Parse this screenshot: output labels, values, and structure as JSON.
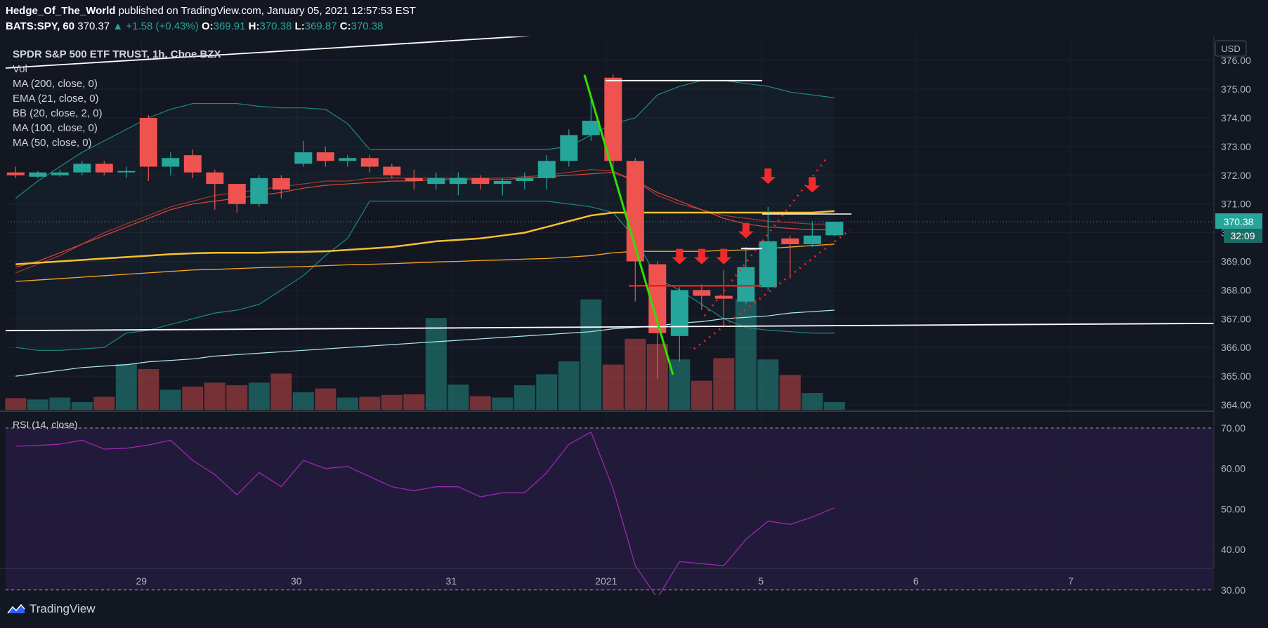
{
  "header": {
    "author": "Hedge_Of_The_World",
    "published": "published on TradingView.com, January 05, 2021 12:57:53 EST",
    "symbol": "BATS:SPY, 60",
    "last": "370.37",
    "change": "+1.58 (+0.43%)",
    "o_label": "O:",
    "o_value": "369.91",
    "h_label": "H:",
    "h_value": "370.38",
    "l_label": "L:",
    "l_value": "369.87",
    "c_label": "C:",
    "c_value": "370.38"
  },
  "legend": {
    "title": "SPDR S&P 500 ETF TRUST, 1h, Cboe BZX",
    "items": [
      "Vol",
      "MA (200, close, 0)",
      "EMA (21, close, 0)",
      "BB (20, close, 2, 0)",
      "MA (100, close, 0)",
      "MA (50, close, 0)"
    ]
  },
  "currency": "USD",
  "price_tag": "370.38",
  "countdown": "32:09",
  "rsi_label": "RSI (14, close)",
  "brand": "TradingView",
  "colors": {
    "up": "#26a69a",
    "down": "#ef5350",
    "bg": "#131722",
    "rsi": "#9c27b0"
  },
  "chart_data": {
    "type": "candlestick",
    "y_ticks": [
      "364.00",
      "365.00",
      "366.00",
      "367.00",
      "368.00",
      "369.00",
      "370.00",
      "371.00",
      "372.00",
      "373.00",
      "374.00",
      "375.00",
      "376.00"
    ],
    "rsi_ticks": [
      "30.00",
      "40.00",
      "50.00",
      "60.00",
      "70.00"
    ],
    "x_ticks": [
      {
        "label": "29",
        "i": 6
      },
      {
        "label": "30",
        "i": 13
      },
      {
        "label": "31",
        "i": 20
      },
      {
        "label": "2021",
        "i": 27
      },
      {
        "label": "5",
        "i": 34
      },
      {
        "label": "6",
        "i": 41
      },
      {
        "label": "7",
        "i": 48
      }
    ],
    "ylim": [
      363.8,
      376.5
    ],
    "rsi_lim": [
      25,
      73
    ],
    "candles": [
      {
        "o": 372.1,
        "h": 372.3,
        "l": 371.9,
        "c": 372.0
      },
      {
        "o": 371.95,
        "h": 372.15,
        "l": 371.9,
        "c": 372.1
      },
      {
        "o": 372.0,
        "h": 372.2,
        "l": 371.95,
        "c": 372.1
      },
      {
        "o": 372.1,
        "h": 372.5,
        "l": 372.0,
        "c": 372.4
      },
      {
        "o": 372.4,
        "h": 372.5,
        "l": 372.0,
        "c": 372.1
      },
      {
        "o": 372.1,
        "h": 372.3,
        "l": 371.9,
        "c": 372.15
      },
      {
        "o": 374.0,
        "h": 374.1,
        "l": 371.8,
        "c": 372.3
      },
      {
        "o": 372.3,
        "h": 372.8,
        "l": 372.0,
        "c": 372.6
      },
      {
        "o": 372.7,
        "h": 372.9,
        "l": 371.9,
        "c": 372.1
      },
      {
        "o": 372.1,
        "h": 372.2,
        "l": 370.8,
        "c": 371.7
      },
      {
        "o": 371.7,
        "h": 371.7,
        "l": 370.7,
        "c": 371.0
      },
      {
        "o": 371.0,
        "h": 372.0,
        "l": 370.9,
        "c": 371.9
      },
      {
        "o": 371.9,
        "h": 372.0,
        "l": 371.2,
        "c": 371.5
      },
      {
        "o": 372.4,
        "h": 373.2,
        "l": 372.3,
        "c": 372.8
      },
      {
        "o": 372.8,
        "h": 373.0,
        "l": 372.3,
        "c": 372.5
      },
      {
        "o": 372.5,
        "h": 372.7,
        "l": 372.3,
        "c": 372.6
      },
      {
        "o": 372.6,
        "h": 372.7,
        "l": 372.1,
        "c": 372.3
      },
      {
        "o": 372.3,
        "h": 372.4,
        "l": 371.9,
        "c": 372.0
      },
      {
        "o": 371.9,
        "h": 372.2,
        "l": 371.5,
        "c": 371.8
      },
      {
        "o": 371.7,
        "h": 372.1,
        "l": 371.5,
        "c": 371.9
      },
      {
        "o": 371.7,
        "h": 372.1,
        "l": 371.3,
        "c": 371.9
      },
      {
        "o": 371.9,
        "h": 372.0,
        "l": 371.5,
        "c": 371.7
      },
      {
        "o": 371.7,
        "h": 371.9,
        "l": 371.3,
        "c": 371.8
      },
      {
        "o": 371.8,
        "h": 372.1,
        "l": 371.5,
        "c": 371.9
      },
      {
        "o": 371.9,
        "h": 372.7,
        "l": 371.5,
        "c": 372.5
      },
      {
        "o": 372.5,
        "h": 373.6,
        "l": 372.3,
        "c": 373.4
      },
      {
        "o": 373.4,
        "h": 374.7,
        "l": 373.2,
        "c": 373.9
      },
      {
        "o": 375.4,
        "h": 375.5,
        "l": 372.1,
        "c": 372.5
      },
      {
        "o": 372.5,
        "h": 372.6,
        "l": 367.6,
        "c": 369.0
      },
      {
        "o": 368.9,
        "h": 369.0,
        "l": 364.9,
        "c": 366.5
      },
      {
        "o": 366.4,
        "h": 368.1,
        "l": 365.5,
        "c": 368.0
      },
      {
        "o": 368.0,
        "h": 368.2,
        "l": 367.3,
        "c": 367.8
      },
      {
        "o": 367.8,
        "h": 368.7,
        "l": 366.7,
        "c": 367.7
      },
      {
        "o": 367.6,
        "h": 369.5,
        "l": 367.5,
        "c": 368.8
      },
      {
        "o": 368.1,
        "h": 370.9,
        "l": 368.0,
        "c": 369.7
      },
      {
        "o": 369.8,
        "h": 369.9,
        "l": 368.4,
        "c": 369.6
      },
      {
        "o": 369.6,
        "h": 370.4,
        "l": 369.5,
        "c": 369.9
      },
      {
        "o": 369.91,
        "h": 370.38,
        "l": 369.87,
        "c": 370.38
      }
    ],
    "volume": [
      0.18,
      0.16,
      0.19,
      0.12,
      0.2,
      0.71,
      0.63,
      0.31,
      0.36,
      0.42,
      0.38,
      0.42,
      0.56,
      0.27,
      0.33,
      0.19,
      0.2,
      0.23,
      0.24,
      1.42,
      0.39,
      0.21,
      0.19,
      0.38,
      0.55,
      0.75,
      1.71,
      0.7,
      1.1,
      1.02,
      0.78,
      0.45,
      0.8,
      1.71,
      0.78,
      0.54,
      0.26,
      0.12
    ],
    "rsi": [
      65.5,
      65.7,
      66,
      67,
      64.8,
      65,
      65.8,
      67,
      62,
      58.5,
      53.5,
      59,
      55.5,
      62,
      60,
      60.5,
      58,
      55.5,
      54.5,
      55.5,
      55.5,
      53,
      54,
      54,
      59,
      66,
      69,
      55,
      36,
      28,
      37,
      36.5,
      36,
      42.5,
      47,
      46.2,
      48,
      50.3
    ],
    "ma50": [
      368.3,
      368.35,
      368.4,
      368.45,
      368.5,
      368.55,
      368.6,
      368.65,
      368.7,
      368.72,
      368.75,
      368.78,
      368.8,
      368.82,
      368.85,
      368.88,
      368.9,
      368.92,
      368.95,
      368.98,
      369.0,
      369.03,
      369.05,
      369.08,
      369.1,
      369.15,
      369.2,
      369.3,
      369.35,
      369.35,
      369.35,
      369.35,
      369.38,
      369.4,
      369.45,
      369.5,
      369.55,
      369.6
    ],
    "ma100": [
      368.9,
      368.95,
      369.0,
      369.05,
      369.1,
      369.15,
      369.2,
      369.25,
      369.28,
      369.3,
      369.3,
      369.3,
      369.32,
      369.33,
      369.35,
      369.4,
      369.45,
      369.5,
      369.6,
      369.7,
      369.75,
      369.8,
      369.9,
      370.0,
      370.2,
      370.4,
      370.6,
      370.7,
      370.7,
      370.7,
      370.7,
      370.7,
      370.7,
      370.7,
      370.7,
      370.7,
      370.7,
      370.75
    ],
    "ma200": [
      365.0,
      365.1,
      365.2,
      365.3,
      365.35,
      365.4,
      365.5,
      365.55,
      365.6,
      365.7,
      365.75,
      365.8,
      365.85,
      365.9,
      365.95,
      366.0,
      366.05,
      366.1,
      366.15,
      366.2,
      366.25,
      366.3,
      366.35,
      366.4,
      366.45,
      366.5,
      366.55,
      366.65,
      366.7,
      366.75,
      366.85,
      366.9,
      367.0,
      367.05,
      367.1,
      367.2,
      367.25,
      367.3
    ],
    "ema21": [
      368.8,
      369.0,
      369.3,
      369.6,
      369.9,
      370.2,
      370.5,
      370.8,
      371.0,
      371.1,
      371.2,
      371.3,
      371.4,
      371.55,
      371.65,
      371.7,
      371.75,
      371.8,
      371.8,
      371.85,
      371.85,
      371.85,
      371.85,
      371.9,
      371.95,
      372.0,
      372.05,
      372.1,
      371.8,
      371.4,
      371.1,
      370.8,
      370.5,
      370.3,
      370.2,
      370.15,
      370.1,
      370.1
    ],
    "bb_mid": [
      368.6,
      368.9,
      369.2,
      369.6,
      370.0,
      370.3,
      370.6,
      370.9,
      371.1,
      371.3,
      371.4,
      371.5,
      371.6,
      371.7,
      371.8,
      371.8,
      371.9,
      371.9,
      371.9,
      371.9,
      371.9,
      371.9,
      371.9,
      371.95,
      372.0,
      372.1,
      372.2,
      372.15,
      371.8,
      371.3,
      371.0,
      370.8,
      370.6,
      370.5,
      370.4,
      370.35,
      370.3,
      370.3
    ],
    "bb_up": [
      371.2,
      371.8,
      372.3,
      372.8,
      373.2,
      373.6,
      374.0,
      374.3,
      374.5,
      374.5,
      374.5,
      374.4,
      374.35,
      374.35,
      374.3,
      373.8,
      372.9,
      372.9,
      372.9,
      372.9,
      372.9,
      372.9,
      372.9,
      372.9,
      372.9,
      373.0,
      373.4,
      373.8,
      374.0,
      374.8,
      375.1,
      375.3,
      375.3,
      375.2,
      375.1,
      374.9,
      374.8,
      374.7
    ],
    "bb_low": [
      366.0,
      365.9,
      365.9,
      365.95,
      366.0,
      366.5,
      366.6,
      366.8,
      367.0,
      367.2,
      367.3,
      367.5,
      368.0,
      368.5,
      369.2,
      369.8,
      371.1,
      371.1,
      371.1,
      371.1,
      371.1,
      371.1,
      371.1,
      371.1,
      371.1,
      371.0,
      370.9,
      370.7,
      369.8,
      368.4,
      368.0,
      367.5,
      367.0,
      366.7,
      366.6,
      366.55,
      366.5,
      366.5
    ],
    "annotations": {
      "resistance": 375.3,
      "support": 368.15,
      "arrows_at": [
        [
          30,
          368.9
        ],
        [
          31,
          368.9
        ],
        [
          32,
          368.9
        ],
        [
          33,
          369.8
        ],
        [
          34,
          371.7
        ],
        [
          36,
          371.4
        ]
      ]
    }
  }
}
